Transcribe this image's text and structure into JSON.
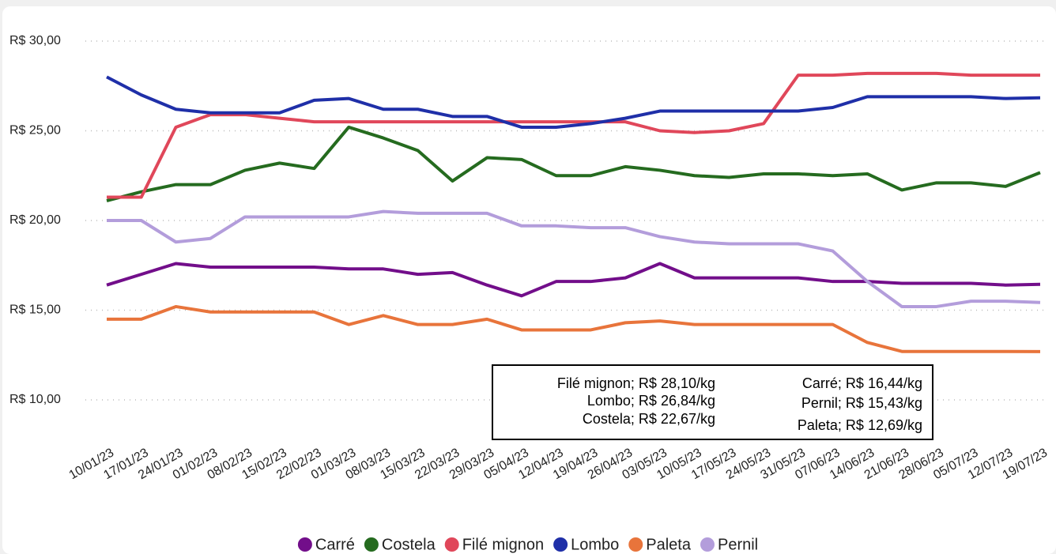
{
  "chart_data": {
    "type": "line",
    "categories": [
      "10/01/23",
      "17/01/23",
      "24/01/23",
      "01/02/23",
      "08/02/23",
      "15/02/23",
      "22/02/23",
      "01/03/23",
      "08/03/23",
      "15/03/23",
      "22/03/23",
      "29/03/23",
      "05/04/23",
      "12/04/23",
      "19/04/23",
      "26/04/23",
      "03/05/23",
      "10/05/23",
      "17/05/23",
      "24/05/23",
      "31/05/23",
      "07/06/23",
      "14/06/23",
      "21/06/23",
      "28/06/23",
      "05/07/23",
      "12/07/23",
      "19/07/23"
    ],
    "series": [
      {
        "name": "Carré",
        "color": "#720e8a",
        "values": [
          16.4,
          17.0,
          17.6,
          17.4,
          17.4,
          17.4,
          17.4,
          17.3,
          17.3,
          17.0,
          17.1,
          16.4,
          15.8,
          16.6,
          16.6,
          16.8,
          17.6,
          16.8,
          16.8,
          16.8,
          16.8,
          16.6,
          16.6,
          16.5,
          16.5,
          16.5,
          16.4,
          16.44
        ]
      },
      {
        "name": "Costela",
        "color": "#256b1f",
        "values": [
          21.1,
          21.6,
          22.0,
          22.0,
          22.8,
          23.2,
          22.9,
          25.2,
          24.6,
          23.9,
          22.2,
          23.5,
          23.4,
          22.5,
          22.5,
          23.0,
          22.8,
          22.5,
          22.4,
          22.6,
          22.6,
          22.5,
          22.6,
          21.7,
          22.1,
          22.1,
          21.9,
          22.67
        ]
      },
      {
        "name": "Filé mignon",
        "color": "#e0475a",
        "values": [
          21.3,
          21.3,
          25.2,
          25.9,
          25.9,
          25.7,
          25.5,
          25.5,
          25.5,
          25.5,
          25.5,
          25.5,
          25.5,
          25.5,
          25.5,
          25.5,
          25.0,
          24.9,
          25.0,
          25.4,
          28.1,
          28.1,
          28.2,
          28.2,
          28.2,
          28.1,
          28.1,
          28.1
        ]
      },
      {
        "name": "Lombo",
        "color": "#1f2fa8",
        "values": [
          28.0,
          27.0,
          26.2,
          26.0,
          26.0,
          26.0,
          26.7,
          26.8,
          26.2,
          26.2,
          25.8,
          25.8,
          25.2,
          25.2,
          25.4,
          25.7,
          26.1,
          26.1,
          26.1,
          26.1,
          26.1,
          26.3,
          26.9,
          26.9,
          26.9,
          26.9,
          26.8,
          26.84
        ]
      },
      {
        "name": "Paleta",
        "color": "#e8743b",
        "values": [
          14.5,
          14.5,
          15.2,
          14.9,
          14.9,
          14.9,
          14.9,
          14.2,
          14.7,
          14.2,
          14.2,
          14.5,
          13.9,
          13.9,
          13.9,
          14.3,
          14.4,
          14.2,
          14.2,
          14.2,
          14.2,
          14.2,
          13.2,
          12.7,
          12.7,
          12.7,
          12.7,
          12.69
        ]
      },
      {
        "name": "Pernil",
        "color": "#b39ddb",
        "values": [
          20.0,
          20.0,
          18.8,
          19.0,
          20.2,
          20.2,
          20.2,
          20.2,
          20.5,
          20.4,
          20.4,
          20.4,
          19.7,
          19.7,
          19.6,
          19.6,
          19.1,
          18.8,
          18.7,
          18.7,
          18.7,
          18.3,
          16.6,
          15.2,
          15.2,
          15.5,
          15.5,
          15.43
        ]
      }
    ],
    "ylim": [
      10,
      30
    ],
    "yticks": [
      {
        "value": 10,
        "label": "R$ 10,00"
      },
      {
        "value": 15,
        "label": "R$ 15,00"
      },
      {
        "value": 20,
        "label": "R$ 20,00"
      },
      {
        "value": 25,
        "label": "R$ 25,00"
      },
      {
        "value": 30,
        "label": "R$ 30,00"
      }
    ],
    "grid": true,
    "legend": "bottom",
    "annotations": [
      "Filé mignon; R$ 28,10/kg",
      "Lombo; R$ 26,84/kg",
      "Costela; R$ 22,67/kg",
      "Carré; R$ 16,44/kg",
      "Pernil; R$ 15,43/kg",
      "Paleta; R$ 12,69/kg"
    ]
  }
}
